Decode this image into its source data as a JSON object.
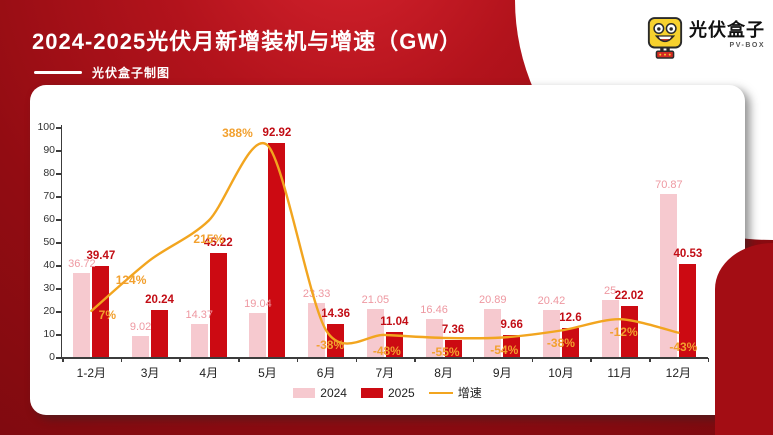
{
  "header": {
    "title": "2024-2025光伏月新增装机与增速（GW）",
    "credit": "光伏盒子制图",
    "logo_text": "光伏盒子",
    "logo_sub": "PV-BOX"
  },
  "colors": {
    "bar_2024": "#f6c9cf",
    "bar_2025": "#cc0a12",
    "growth_line": "#f2a51f",
    "label_2024": "#ee98a1",
    "label_2025": "#c20d15",
    "label_growth": "#f2a02e",
    "background_red": "#920c12",
    "corner_blob": "#a30d14"
  },
  "chart_data": {
    "type": "bar",
    "title": "2024-2025光伏月新增装机与增速（GW）",
    "categories": [
      "1-2月",
      "3月",
      "4月",
      "5月",
      "6月",
      "7月",
      "8月",
      "9月",
      "10月",
      "11月",
      "12月"
    ],
    "series": [
      {
        "name": "2024",
        "type": "bar",
        "values": [
          36.72,
          9.02,
          14.37,
          19.04,
          23.33,
          21.05,
          16.46,
          20.89,
          20.42,
          25,
          70.87
        ],
        "labels": [
          "36.72",
          "9.02",
          "14.37",
          "19.04",
          "23.33",
          "21.05",
          "16.46",
          "20.89",
          "20.42",
          "25",
          "70.87"
        ]
      },
      {
        "name": "2025",
        "type": "bar",
        "values": [
          39.47,
          20.24,
          45.22,
          92.92,
          14.36,
          11.04,
          7.36,
          9.66,
          12.6,
          22.02,
          40.53
        ],
        "labels": [
          "39.47",
          "20.24",
          "45.22",
          "92.92",
          "14.36",
          "11.04",
          "7.36",
          "9.66",
          "12.6",
          "22.02",
          "40.53"
        ]
      },
      {
        "name": "增速",
        "type": "line",
        "values_pct": [
          7,
          124,
          215,
          388,
          -38,
          -48,
          -55,
          -54,
          -38,
          -12,
          -43
        ],
        "labels": [
          "7%",
          "124%",
          "215%",
          "388%",
          "-38%",
          "-48%",
          "-55%",
          "-54%",
          "-38%",
          "-12%",
          "-43%"
        ]
      }
    ],
    "y_axis": {
      "min": 0,
      "max": 100,
      "step": 10
    },
    "legend": [
      "2024",
      "2025",
      "增速"
    ],
    "legend_position": "bottom",
    "grid": false
  }
}
